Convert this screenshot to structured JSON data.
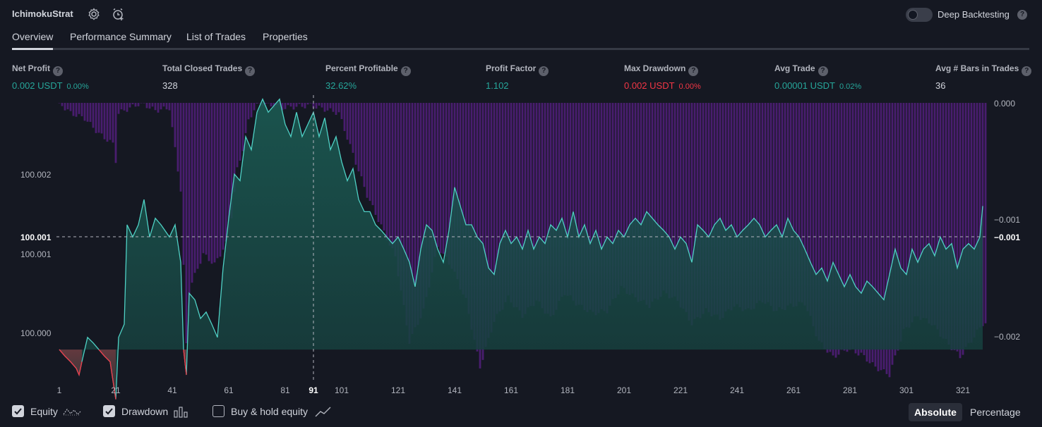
{
  "header": {
    "strategy_name": "IchimokuStrat",
    "settings_icon": "gear-icon",
    "alert_icon": "alarm-add-icon",
    "deep_backtesting_label": "Deep Backtesting",
    "deep_backtesting_enabled": false,
    "help_glyph": "?"
  },
  "tabs": [
    {
      "label": "Overview",
      "active": true
    },
    {
      "label": "Performance Summary",
      "active": false
    },
    {
      "label": "List of Trades",
      "active": false
    },
    {
      "label": "Properties",
      "active": false
    }
  ],
  "metrics": [
    {
      "label": "Net Profit",
      "value": "0.002 USDT",
      "pct": "0.00%",
      "color": "#26a69a"
    },
    {
      "label": "Total Closed Trades",
      "value": "328",
      "pct": "",
      "color": "#d1d4dc"
    },
    {
      "label": "Percent Profitable",
      "value": "32.62%",
      "pct": "",
      "color": "#26a69a"
    },
    {
      "label": "Profit Factor",
      "value": "1.102",
      "pct": "",
      "color": "#26a69a"
    },
    {
      "label": "Max Drawdown",
      "value": "0.002 USDT",
      "pct": "0.00%",
      "color": "#f23645"
    },
    {
      "label": "Avg Trade",
      "value": "0.00001 USDT",
      "pct": "0.02%",
      "color": "#26a69a"
    },
    {
      "label": "Avg # Bars in Trades",
      "value": "36",
      "pct": "",
      "color": "#d1d4dc"
    }
  ],
  "chart": {
    "left_axis_labels": [
      "100.002",
      "100.001",
      "100.001",
      "100.000"
    ],
    "right_axis_labels": [
      "0.000",
      "−0.001",
      "−0.001",
      "−0.002"
    ],
    "x_tick_labels": [
      "1",
      "21",
      "41",
      "61",
      "81",
      "101",
      "121",
      "141",
      "161",
      "181",
      "201",
      "221",
      "241",
      "261",
      "281",
      "301",
      "321"
    ],
    "crosshair_x_label": "91"
  },
  "chart_data": {
    "type": "line",
    "x_range": [
      1,
      329
    ],
    "crosshair_trade": 91,
    "equity": {
      "baseline": 100.0,
      "ylim": [
        99.99973,
        100.00266
      ],
      "points": [
        [
          1,
          100.0
        ],
        [
          3,
          99.99993
        ],
        [
          5,
          99.99987
        ],
        [
          7,
          99.9998
        ],
        [
          8,
          99.99973
        ],
        [
          9,
          99.99987
        ],
        [
          11,
          100.00013
        ],
        [
          13,
          100.00007
        ],
        [
          15,
          100.0
        ],
        [
          17,
          99.99993
        ],
        [
          19,
          99.99987
        ],
        [
          20,
          99.99967
        ],
        [
          21,
          99.99947
        ],
        [
          22,
          100.00013
        ],
        [
          24,
          100.00027
        ],
        [
          25,
          100.00133
        ],
        [
          27,
          100.0012
        ],
        [
          29,
          100.00133
        ],
        [
          31,
          100.0016
        ],
        [
          33,
          100.0012
        ],
        [
          35,
          100.0014
        ],
        [
          37,
          100.00133
        ],
        [
          40,
          100.0012
        ],
        [
          42,
          100.00133
        ],
        [
          44,
          100.00093
        ],
        [
          45,
          100.0
        ],
        [
          46,
          99.99973
        ],
        [
          47,
          100.0006
        ],
        [
          49,
          100.00053
        ],
        [
          51,
          100.00033
        ],
        [
          53,
          100.0004
        ],
        [
          55,
          100.00027
        ],
        [
          57,
          100.00013
        ],
        [
          59,
          100.00087
        ],
        [
          61,
          100.0014
        ],
        [
          63,
          100.00187
        ],
        [
          65,
          100.0018
        ],
        [
          67,
          100.00227
        ],
        [
          69,
          100.00213
        ],
        [
          71,
          100.00253
        ],
        [
          73,
          100.00267
        ],
        [
          75,
          100.00253
        ],
        [
          77,
          100.0026
        ],
        [
          79,
          100.00267
        ],
        [
          81,
          100.0024
        ],
        [
          83,
          100.00227
        ],
        [
          85,
          100.00253
        ],
        [
          87,
          100.00227
        ],
        [
          89,
          100.0024
        ],
        [
          91,
          100.00253
        ],
        [
          93,
          100.00227
        ],
        [
          95,
          100.00247
        ],
        [
          97,
          100.00213
        ],
        [
          99,
          100.00227
        ],
        [
          101,
          100.002
        ],
        [
          103,
          100.0018
        ],
        [
          105,
          100.00193
        ],
        [
          107,
          100.0016
        ],
        [
          109,
          100.00147
        ],
        [
          111,
          100.00147
        ],
        [
          113,
          100.00133
        ],
        [
          115,
          100.00127
        ],
        [
          117,
          100.0012
        ],
        [
          119,
          100.00113
        ],
        [
          121,
          100.0012
        ],
        [
          123,
          100.00107
        ],
        [
          125,
          100.00093
        ],
        [
          127,
          100.00067
        ],
        [
          129,
          100.00107
        ],
        [
          131,
          100.00133
        ],
        [
          133,
          100.00127
        ],
        [
          135,
          100.00107
        ],
        [
          137,
          100.00093
        ],
        [
          139,
          100.00127
        ],
        [
          141,
          100.00173
        ],
        [
          143,
          100.00153
        ],
        [
          145,
          100.00133
        ],
        [
          147,
          100.00133
        ],
        [
          149,
          100.0012
        ],
        [
          151,
          100.00113
        ],
        [
          153,
          100.00087
        ],
        [
          155,
          100.0008
        ],
        [
          157,
          100.00113
        ],
        [
          159,
          100.00127
        ],
        [
          161,
          100.00113
        ],
        [
          163,
          100.0012
        ],
        [
          165,
          100.00107
        ],
        [
          167,
          100.00127
        ],
        [
          169,
          100.00107
        ],
        [
          171,
          100.0012
        ],
        [
          173,
          100.00113
        ],
        [
          175,
          100.00133
        ],
        [
          177,
          100.00127
        ],
        [
          179,
          100.0014
        ],
        [
          181,
          100.0012
        ],
        [
          183,
          100.00147
        ],
        [
          185,
          100.0012
        ],
        [
          187,
          100.00133
        ],
        [
          189,
          100.00113
        ],
        [
          191,
          100.00127
        ],
        [
          193,
          100.00107
        ],
        [
          195,
          100.0012
        ],
        [
          197,
          100.00113
        ],
        [
          199,
          100.00127
        ],
        [
          201,
          100.0012
        ],
        [
          203,
          100.00133
        ],
        [
          205,
          100.0014
        ],
        [
          207,
          100.00133
        ],
        [
          209,
          100.00147
        ],
        [
          211,
          100.0014
        ],
        [
          213,
          100.00133
        ],
        [
          215,
          100.00127
        ],
        [
          217,
          100.0012
        ],
        [
          219,
          100.00107
        ],
        [
          221,
          100.0012
        ],
        [
          223,
          100.00113
        ],
        [
          225,
          100.00093
        ],
        [
          227,
          100.00133
        ],
        [
          229,
          100.00127
        ],
        [
          231,
          100.0012
        ],
        [
          233,
          100.00133
        ],
        [
          235,
          100.0014
        ],
        [
          237,
          100.00127
        ],
        [
          239,
          100.00133
        ],
        [
          241,
          100.0012
        ],
        [
          243,
          100.00127
        ],
        [
          245,
          100.00133
        ],
        [
          247,
          100.0014
        ],
        [
          249,
          100.00133
        ],
        [
          251,
          100.0012
        ],
        [
          253,
          100.00127
        ],
        [
          255,
          100.00133
        ],
        [
          257,
          100.0012
        ],
        [
          259,
          100.0014
        ],
        [
          261,
          100.00127
        ],
        [
          263,
          100.0012
        ],
        [
          265,
          100.00107
        ],
        [
          267,
          100.00093
        ],
        [
          269,
          100.0008
        ],
        [
          271,
          100.00087
        ],
        [
          273,
          100.00073
        ],
        [
          275,
          100.00093
        ],
        [
          277,
          100.0008
        ],
        [
          279,
          100.00067
        ],
        [
          281,
          100.0008
        ],
        [
          283,
          100.00067
        ],
        [
          285,
          100.0006
        ],
        [
          287,
          100.00073
        ],
        [
          289,
          100.00067
        ],
        [
          291,
          100.0006
        ],
        [
          293,
          100.00053
        ],
        [
          295,
          100.0008
        ],
        [
          297,
          100.00107
        ],
        [
          299,
          100.00087
        ],
        [
          301,
          100.0008
        ],
        [
          303,
          100.00107
        ],
        [
          305,
          100.00093
        ],
        [
          307,
          100.00107
        ],
        [
          309,
          100.00113
        ],
        [
          311,
          100.001
        ],
        [
          313,
          100.0012
        ],
        [
          315,
          100.00107
        ],
        [
          317,
          100.00113
        ],
        [
          319,
          100.00087
        ],
        [
          321,
          100.00107
        ],
        [
          323,
          100.00113
        ],
        [
          325,
          100.00107
        ],
        [
          327,
          100.0012
        ],
        [
          328,
          100.00153
        ]
      ]
    },
    "drawdown": {
      "ylim": [
        -0.00212,
        0.0
      ],
      "points": [
        [
          1,
          0.0
        ],
        [
          5,
          -8e-05
        ],
        [
          10,
          -0.00012
        ],
        [
          15,
          -0.00024
        ],
        [
          20,
          -0.00032
        ],
        [
          21,
          -0.00045
        ],
        [
          22,
          -8e-05
        ],
        [
          26,
          -4e-05
        ],
        [
          30,
          0.0
        ],
        [
          35,
          -6e-05
        ],
        [
          40,
          -4e-05
        ],
        [
          44,
          -0.00068
        ],
        [
          46,
          -0.00188
        ],
        [
          48,
          -0.0014
        ],
        [
          52,
          -0.00118
        ],
        [
          56,
          -0.00126
        ],
        [
          60,
          -0.0011
        ],
        [
          62,
          -0.00088
        ],
        [
          64,
          -0.00052
        ],
        [
          66,
          -0.00036
        ],
        [
          68,
          -0.00014
        ],
        [
          70,
          -5e-05
        ],
        [
          72,
          0.0
        ],
        [
          80,
          -4e-05
        ],
        [
          90,
          -2e-05
        ],
        [
          100,
          -8e-05
        ],
        [
          110,
          -0.00072
        ],
        [
          120,
          -0.0012
        ],
        [
          125,
          -0.00186
        ],
        [
          130,
          -0.00162
        ],
        [
          135,
          -0.00112
        ],
        [
          140,
          -0.00128
        ],
        [
          145,
          -0.00154
        ],
        [
          150,
          -0.00206
        ],
        [
          155,
          -0.0017
        ],
        [
          160,
          -0.00152
        ],
        [
          165,
          -0.00166
        ],
        [
          170,
          -0.00154
        ],
        [
          175,
          -0.00168
        ],
        [
          180,
          -0.00148
        ],
        [
          185,
          -0.00158
        ],
        [
          190,
          -0.00164
        ],
        [
          195,
          -0.00162
        ],
        [
          200,
          -0.00144
        ],
        [
          205,
          -0.00152
        ],
        [
          210,
          -0.00158
        ],
        [
          215,
          -0.00148
        ],
        [
          220,
          -0.00154
        ],
        [
          225,
          -0.00172
        ],
        [
          230,
          -0.00162
        ],
        [
          235,
          -0.00168
        ],
        [
          240,
          -0.00158
        ],
        [
          245,
          -0.00162
        ],
        [
          250,
          -0.00154
        ],
        [
          255,
          -0.00162
        ],
        [
          260,
          -0.00158
        ],
        [
          265,
          -0.00156
        ],
        [
          270,
          -0.00186
        ],
        [
          275,
          -0.00198
        ],
        [
          280,
          -0.00192
        ],
        [
          285,
          -0.00196
        ],
        [
          290,
          -0.00206
        ],
        [
          295,
          -0.00212
        ],
        [
          300,
          -0.00178
        ],
        [
          305,
          -0.00166
        ],
        [
          310,
          -0.00172
        ],
        [
          315,
          -0.00186
        ],
        [
          320,
          -0.00198
        ],
        [
          325,
          -0.00182
        ],
        [
          328,
          -0.00172
        ]
      ]
    }
  },
  "footer": {
    "checkboxes": [
      {
        "label": "Equity",
        "checked": true,
        "icon": "line-chart-icon"
      },
      {
        "label": "Drawdown",
        "checked": true,
        "icon": "bar-chart-icon"
      },
      {
        "label": "Buy & hold equity",
        "checked": false,
        "icon": "trend-line-icon"
      }
    ],
    "modes": [
      {
        "label": "Absolute",
        "active": true
      },
      {
        "label": "Percentage",
        "active": false
      }
    ]
  },
  "colors": {
    "background": "#151822",
    "accent_teal": "#26a69a",
    "equity_line": "#4fd1c5",
    "negative_red": "#f23645",
    "drawdown_purple": "#5b1f8a"
  }
}
